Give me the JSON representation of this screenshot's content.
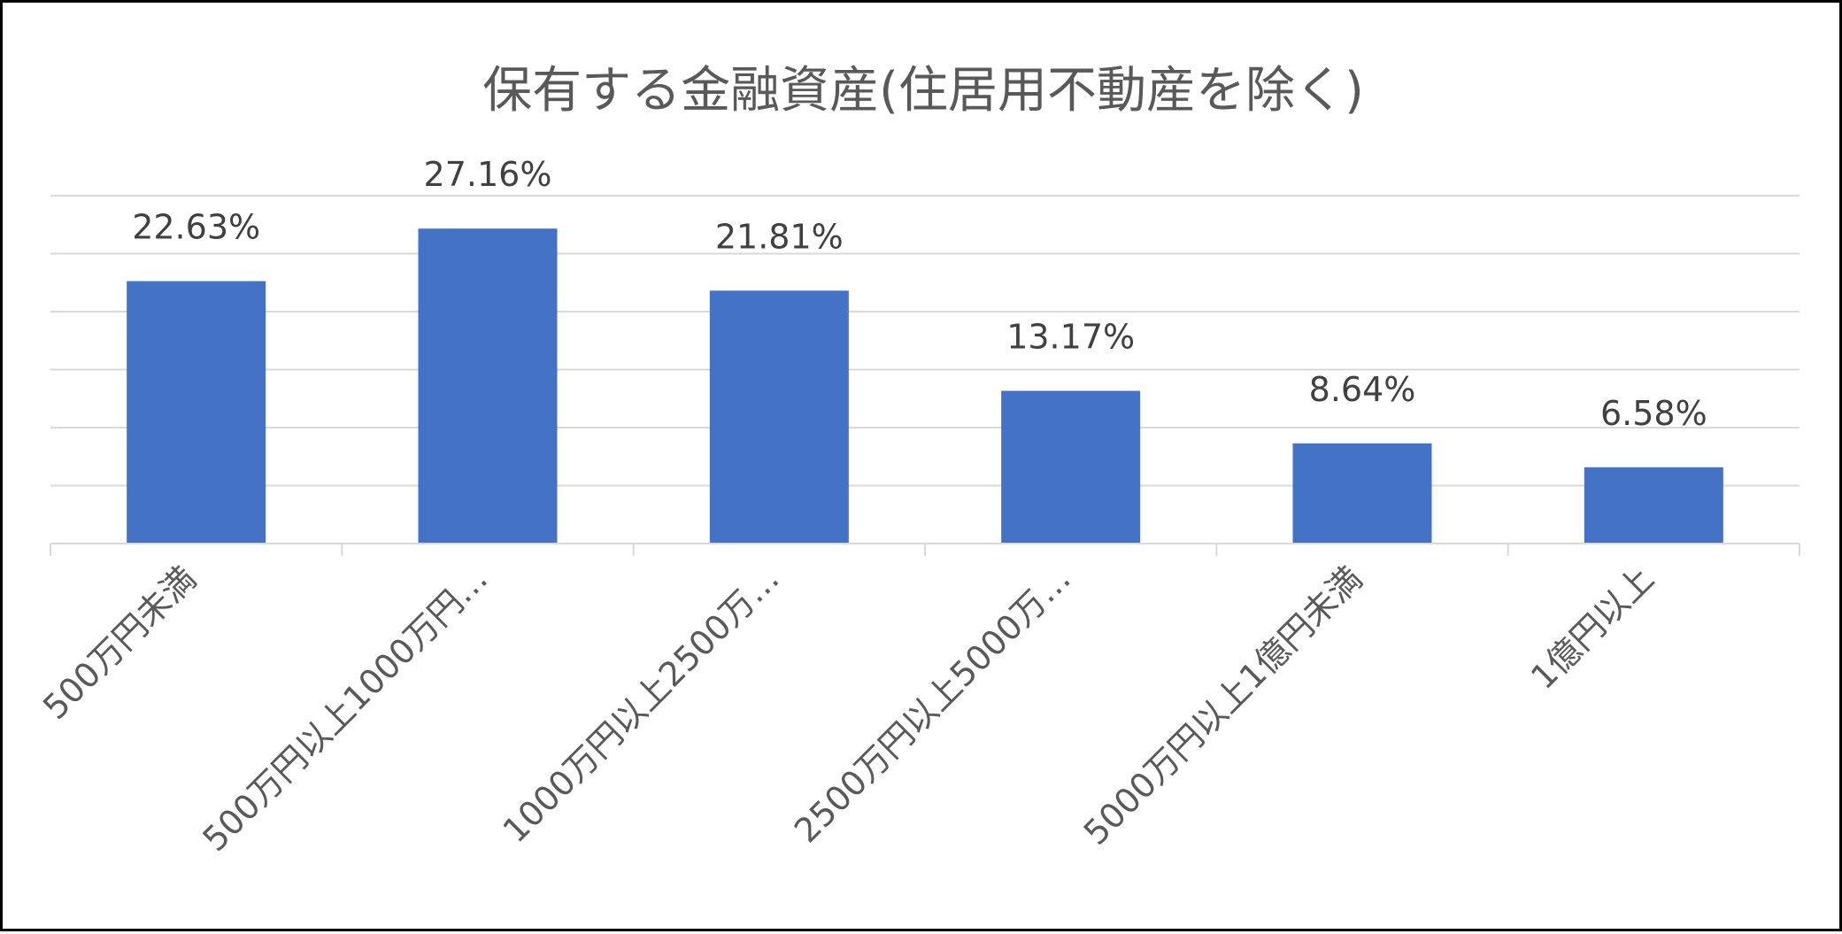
{
  "chart_data": {
    "type": "bar",
    "title": "保有する金融資産(住居用不動産を除く)",
    "categories": [
      "500万円未満",
      "500万円以上1000万円…",
      "1000万円以上2500万…",
      "2500万円以上5000万…",
      "5000万円以上1億円未満",
      "1億円以上"
    ],
    "values": [
      22.63,
      27.16,
      21.81,
      13.17,
      8.64,
      6.58
    ],
    "data_labels": [
      "22.63%",
      "27.16%",
      "21.81%",
      "13.17%",
      "8.64%",
      "6.58%"
    ],
    "ylim": [
      0,
      30
    ],
    "grid": true,
    "legend": "none",
    "bar_color": "#4472c4"
  }
}
